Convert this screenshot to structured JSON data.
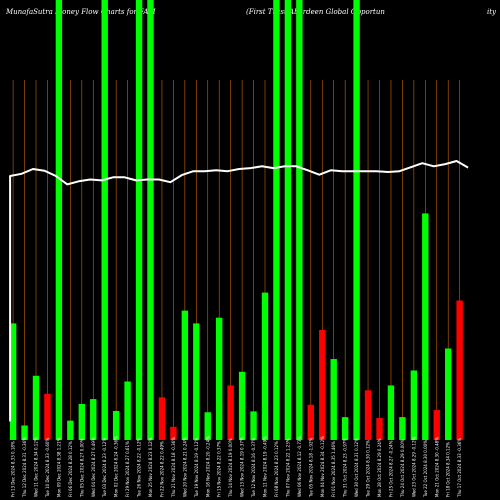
{
  "header": {
    "left": "MunafaSutra  Money Flow  Charts for FAM",
    "middle": "(First Trust/Aberdeen  Global Opportun",
    "right": "ity"
  },
  "chart_data": {
    "type": "bar",
    "title": "MunafaSutra  Money Flow  Charts for FAM",
    "colors": {
      "up": "#00ff00",
      "down": "#ff0000",
      "line": "#ffffff",
      "grid": "#cc6600",
      "background": "#000000"
    },
    "ylim": [
      0,
      100
    ],
    "bars": [
      {
        "x": "Fri 13 Dec 2024 8.33 0.18%",
        "value": 26.5,
        "dir": "up"
      },
      {
        "x": "Thu 12 Dec 2024 8.31 -0.36%",
        "value": 3.3,
        "dir": "up"
      },
      {
        "x": "Wed 11 Dec 2024 8.34 0.12%",
        "value": 14.6,
        "dir": "up"
      },
      {
        "x": "Tue 10 Dec 2024 8.33 -0.60%",
        "value": 10.5,
        "dir": "down"
      },
      {
        "x": "Mon 09 Dec 2024 8.38 1.21%",
        "value": 100,
        "dir": "up"
      },
      {
        "x": "Fri 06 Dec 2024 8.28 0.12%",
        "value": 4.4,
        "dir": "up"
      },
      {
        "x": "Thu 05 Dec 2024 8.27 0.00%",
        "value": 8.2,
        "dir": "up"
      },
      {
        "x": "Wed 04 Dec 2024 8.27 0.49%",
        "value": 9.3,
        "dir": "up"
      },
      {
        "x": "Tue 03 Dec 2024 8.23 -0.12%",
        "value": 100,
        "dir": "up"
      },
      {
        "x": "Mon 02 Dec 2024 8.24 -0.36%",
        "value": 6.6,
        "dir": "up"
      },
      {
        "x": "Fri 29 Nov 2024 8.27 0.61%",
        "value": 13.3,
        "dir": "up"
      },
      {
        "x": "Tue 26 Nov 2024 8.22 -0.12%",
        "value": 100,
        "dir": "up"
      },
      {
        "x": "Mon 25 Nov 2024 8.23 0.12%",
        "value": 100,
        "dir": "up"
      },
      {
        "x": "Fri 22 Nov 2024 8.22 0.49%",
        "value": 9.7,
        "dir": "down"
      },
      {
        "x": "Thu 21 Nov 2024 8.18 -0.36%",
        "value": 3.0,
        "dir": "down"
      },
      {
        "x": "Wed 20 Nov 2024 8.21 0.24%",
        "value": 29.4,
        "dir": "up"
      },
      {
        "x": "Tue 19 Nov 2024 8.19 -0.12%",
        "value": 26.5,
        "dir": "up"
      },
      {
        "x": "Mon 18 Nov 2024 8.20 -0.24%",
        "value": 6.3,
        "dir": "up"
      },
      {
        "x": "Fri 15 Nov 2024 8.22 0.37%",
        "value": 27.8,
        "dir": "up"
      },
      {
        "x": "Thu 14 Nov 2024 8.19 0.00%",
        "value": 12.4,
        "dir": "down"
      },
      {
        "x": "Wed 13 Nov 2024 8.19 0.37%",
        "value": 15.5,
        "dir": "up"
      },
      {
        "x": "Tue 12 Nov 2024 8.16 -0.37%",
        "value": 6.5,
        "dir": "up"
      },
      {
        "x": "Mon 11 Nov 2024 8.19 -0.49%",
        "value": 33.5,
        "dir": "up"
      },
      {
        "x": "Fri 08 Nov 2024 8.23 0.12%",
        "value": 100,
        "dir": "up"
      },
      {
        "x": "Thu 07 Nov 2024 8.22 1.23%",
        "value": 100,
        "dir": "up"
      },
      {
        "x": "Wed 06 Nov 2024 8.12 -0.73%",
        "value": 100,
        "dir": "up"
      },
      {
        "x": "Tue 05 Nov 2024 8.18 -1.92%",
        "value": 8.0,
        "dir": "down"
      },
      {
        "x": "Mon 04 Nov 2024 8.34 -0.12%",
        "value": 25.0,
        "dir": "down"
      },
      {
        "x": "Fri 01 Nov 2024 8.35 1.46%",
        "value": 18.4,
        "dir": "up"
      },
      {
        "x": "Thu 31 Oct 2024 8.23 -0.97%",
        "value": 5.2,
        "dir": "up"
      },
      {
        "x": "Wed 30 Oct 2024 8.31 0.12%",
        "value": 100,
        "dir": "up"
      },
      {
        "x": "Tue 29 Oct 2024 8.30 0.12%",
        "value": 11.3,
        "dir": "down"
      },
      {
        "x": "Mon 28 Oct 2024 8.29 0.24%",
        "value": 5.0,
        "dir": "down"
      },
      {
        "x": "Fri 25 Oct 2024 8.27 -0.24%",
        "value": 12.4,
        "dir": "up"
      },
      {
        "x": "Thu 24 Oct 2024 8.29 0.00%",
        "value": 5.2,
        "dir": "up"
      },
      {
        "x": "Wed 23 Oct 2024 8.29 -0.12%",
        "value": 15.8,
        "dir": "up"
      },
      {
        "x": "Tue 22 Oct 2024 8.30 0.00%",
        "value": 51.5,
        "dir": "up"
      },
      {
        "x": "Mon 21 Oct 2024 8.30 -0.48%",
        "value": 6.8,
        "dir": "down"
      },
      {
        "x": "Fri 18 Oct 2024 8.34 0.12%",
        "value": 20.8,
        "dir": "up"
      },
      {
        "x": "Thu 17 Oct 2024 8.33 -0.36%",
        "value": 31.7,
        "dir": "down"
      }
    ],
    "line": [
      60,
      60.5,
      61.6,
      61.2,
      60.0,
      58.1,
      58.8,
      59.2,
      59.0,
      59.7,
      59.7,
      59.0,
      59.2,
      59.2,
      58.6,
      60.2,
      61.1,
      61.1,
      61.3,
      61.1,
      61.6,
      61.8,
      62.2,
      61.8,
      62.2,
      62.2,
      61.3,
      60.3,
      61.3,
      61.1,
      61.1,
      61.1,
      61.1,
      60.9,
      61.1,
      62.0,
      62.9,
      62.2,
      62.7,
      63.4,
      61.9
    ],
    "line_first_level": 4.2
  }
}
